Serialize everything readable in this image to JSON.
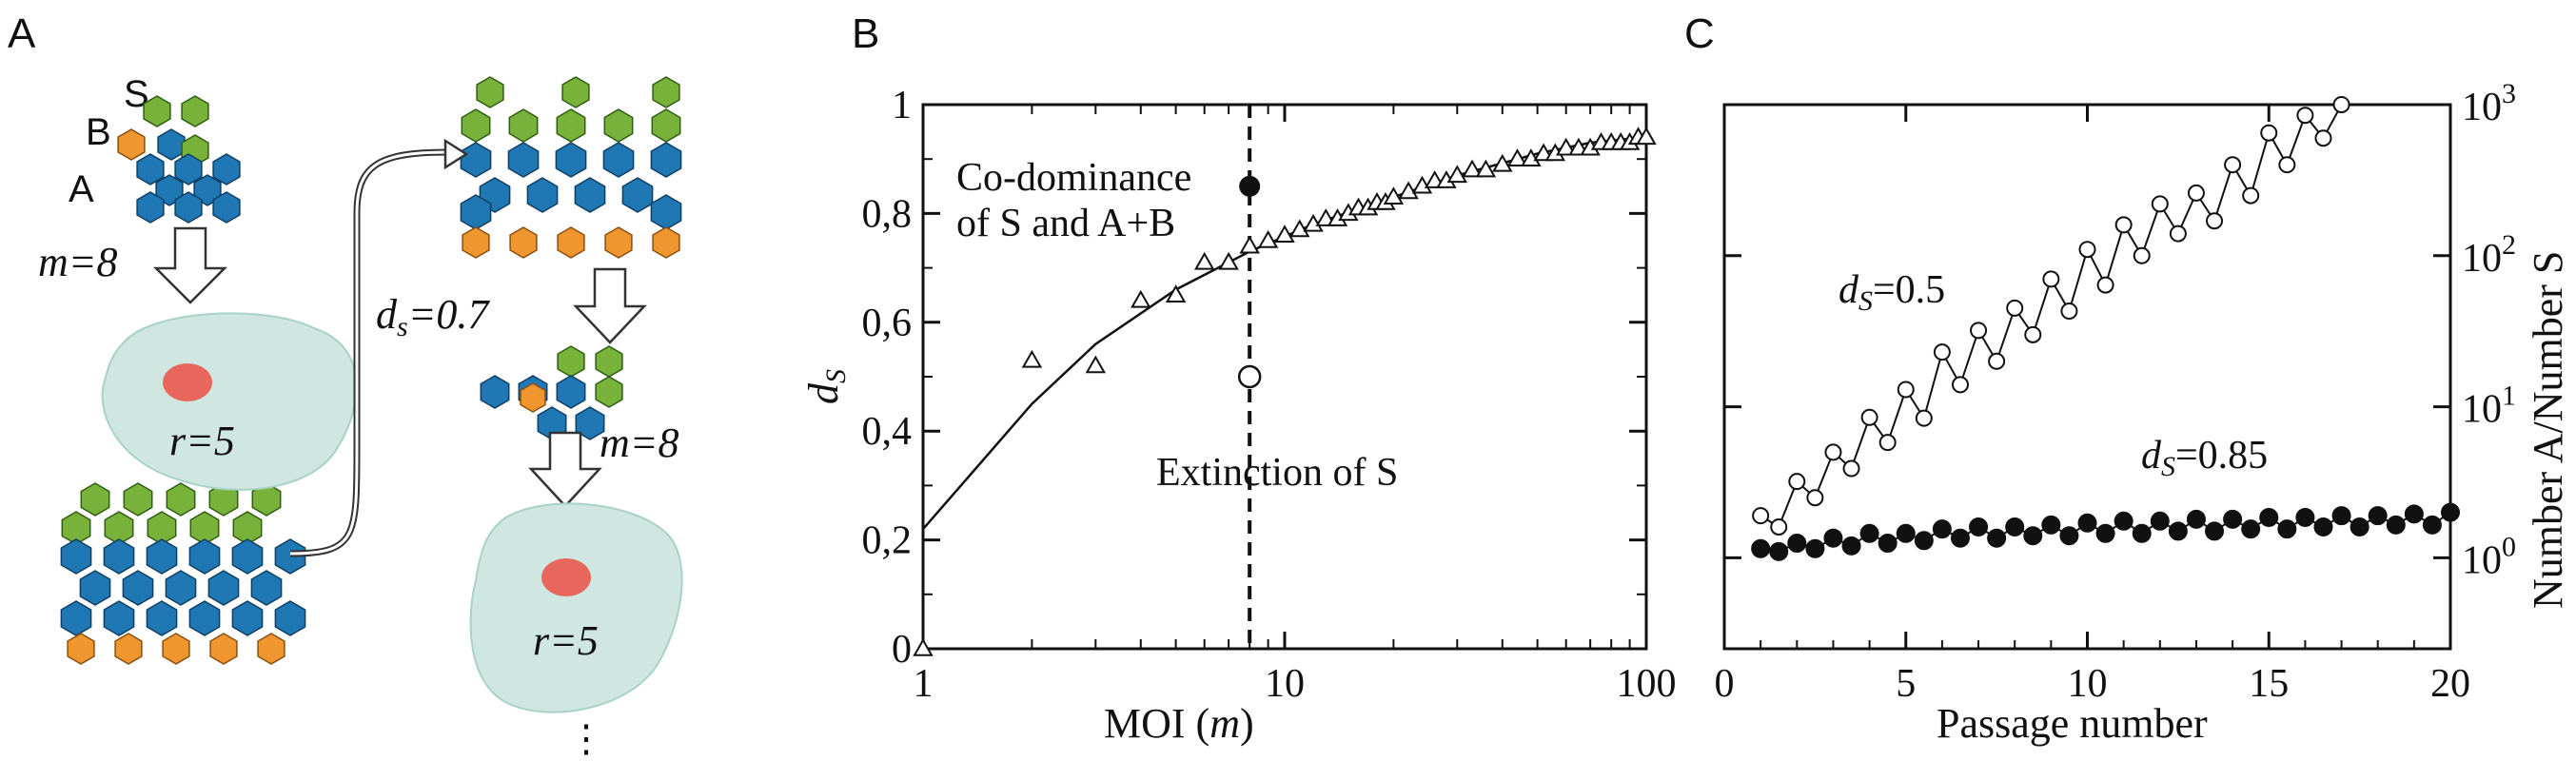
{
  "panel_a": {
    "letter": "A",
    "label_s": "S",
    "label_b": "B",
    "label_a": "A",
    "m_label": "m=8",
    "r_label": "r=5",
    "ds_label": "d",
    "ds_sub": "s",
    "ds_value": "=0.7",
    "m_label_2": "m=8",
    "r_label_2": "r=5",
    "continuation": "⋮",
    "colors": {
      "A": "#1f78b4",
      "B": "#f0962f",
      "S": "#78b23a",
      "cell": "#cfe7e0",
      "nucleus": "#e8675d"
    }
  },
  "panel_b": {
    "letter": "B",
    "ylabel_main": "d",
    "ylabel_sub": "S",
    "xlabel_main": "MOI (",
    "xlabel_italic": "m",
    "xlabel_close": ")",
    "annot_codominance_1": "Co-dominance",
    "annot_codominance_2": "of S and A+B",
    "annot_extinction": "Extinction of S",
    "x_ticks": [
      "1",
      "10",
      "100"
    ],
    "y_ticks": [
      "0",
      "0,2",
      "0,4",
      "0,6",
      "0,8",
      "1"
    ]
  },
  "panel_c": {
    "letter": "C",
    "xlabel": "Passage number",
    "ylabel": "Number A/Number S",
    "x_ticks": [
      "0",
      "5",
      "10",
      "15",
      "20"
    ],
    "y_tick_base": "10",
    "y_tick_exps": [
      "0",
      "1",
      "2",
      "3"
    ],
    "series_labels": [
      {
        "d": "d",
        "sub": "S",
        "val": "=0.5"
      },
      {
        "d": "d",
        "sub": "S",
        "val": "=0.85"
      }
    ]
  },
  "chart_data": [
    {
      "type": "scatter",
      "panel": "B",
      "xlabel": "MOI (m)",
      "ylabel": "dS",
      "xscale": "log",
      "xlim": [
        1,
        100
      ],
      "ylim": [
        0,
        1
      ],
      "series": [
        {
          "marker": "open-triangle",
          "x": [
            1,
            2,
            3,
            4,
            5,
            6,
            7,
            8,
            9,
            10,
            11,
            12,
            13,
            14,
            15,
            16,
            17,
            18,
            19,
            20,
            22,
            24,
            26,
            28,
            30,
            33,
            36,
            40,
            44,
            48,
            52,
            56,
            60,
            65,
            70,
            75,
            80,
            85,
            90,
            95,
            100
          ],
          "y": [
            0.0,
            0.53,
            0.52,
            0.64,
            0.65,
            0.71,
            0.71,
            0.74,
            0.75,
            0.76,
            0.77,
            0.78,
            0.79,
            0.79,
            0.8,
            0.81,
            0.81,
            0.82,
            0.82,
            0.83,
            0.84,
            0.85,
            0.86,
            0.86,
            0.87,
            0.88,
            0.88,
            0.89,
            0.9,
            0.9,
            0.91,
            0.91,
            0.92,
            0.92,
            0.92,
            0.93,
            0.93,
            0.93,
            0.93,
            0.94,
            0.94
          ]
        },
        {
          "style": "line",
          "x": [
            1,
            2,
            3,
            5,
            8,
            12,
            20,
            30,
            50,
            70,
            100
          ],
          "y": [
            0.22,
            0.45,
            0.56,
            0.66,
            0.73,
            0.78,
            0.83,
            0.87,
            0.91,
            0.93,
            0.94
          ]
        },
        {
          "marker": "filled-circle",
          "x": [
            8
          ],
          "y": [
            0.85
          ]
        },
        {
          "marker": "open-circle",
          "x": [
            8
          ],
          "y": [
            0.5
          ]
        }
      ],
      "vline": {
        "x": 8,
        "style": "dashed"
      }
    },
    {
      "type": "line",
      "panel": "C",
      "xlabel": "Passage number",
      "ylabel": "Number A/Number S",
      "yscale": "log",
      "xlim": [
        0,
        20
      ],
      "ylim": [
        0.25,
        1000
      ],
      "series": [
        {
          "name": "dS=0.5",
          "marker": "open-circle",
          "x": [
            1,
            1.5,
            2,
            2.5,
            3,
            3.5,
            4,
            4.5,
            5,
            5.5,
            6,
            6.5,
            7,
            7.5,
            8,
            8.5,
            9,
            9.5,
            10,
            10.5,
            11,
            11.5,
            12,
            12.5,
            13,
            13.5,
            14,
            14.5,
            15,
            15.5,
            16,
            16.5,
            17
          ],
          "y": [
            1.9,
            1.6,
            3.2,
            2.5,
            5.0,
            3.9,
            8.5,
            5.8,
            13,
            8.4,
            23,
            14,
            32,
            20,
            45,
            30,
            70,
            43,
            110,
            64,
            160,
            100,
            220,
            140,
            260,
            170,
            400,
            250,
            650,
            400,
            850,
            600,
            1000
          ]
        },
        {
          "name": "dS=0.85",
          "marker": "filled-circle",
          "x": [
            1,
            1.5,
            2,
            2.5,
            3,
            3.5,
            4,
            4.5,
            5,
            5.5,
            6,
            6.5,
            7,
            7.5,
            8,
            8.5,
            9,
            9.5,
            10,
            10.5,
            11,
            11.5,
            12,
            12.5,
            13,
            13.5,
            14,
            14.5,
            15,
            15.5,
            16,
            16.5,
            17,
            17.5,
            18,
            18.5,
            19,
            19.5,
            20
          ],
          "y": [
            1.15,
            1.1,
            1.25,
            1.15,
            1.35,
            1.2,
            1.45,
            1.25,
            1.45,
            1.3,
            1.55,
            1.35,
            1.6,
            1.35,
            1.6,
            1.4,
            1.65,
            1.4,
            1.7,
            1.45,
            1.75,
            1.45,
            1.75,
            1.5,
            1.8,
            1.5,
            1.8,
            1.55,
            1.85,
            1.55,
            1.85,
            1.6,
            1.9,
            1.6,
            1.9,
            1.65,
            1.95,
            1.65,
            2.0
          ]
        }
      ]
    }
  ]
}
